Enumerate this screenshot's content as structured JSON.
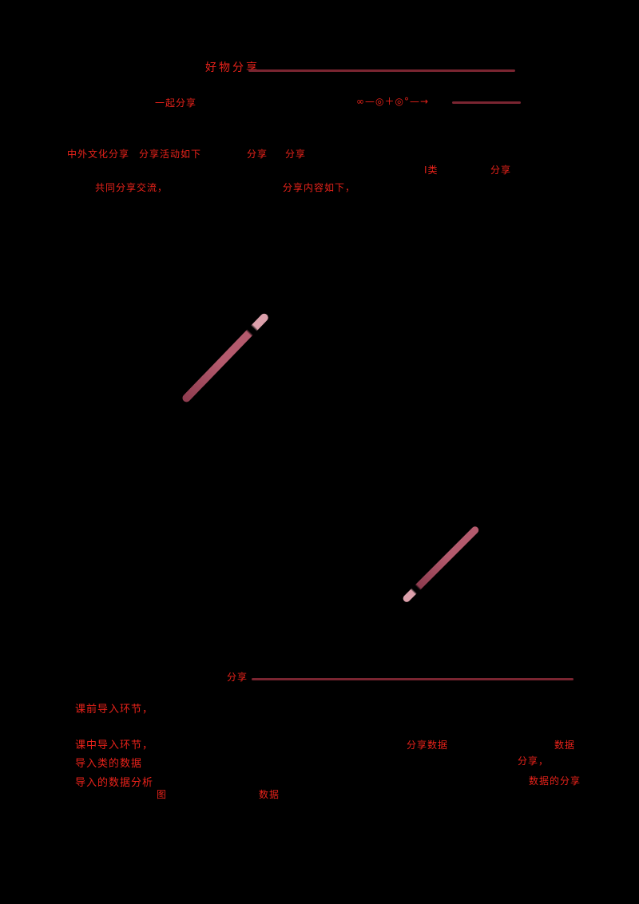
{
  "board": {
    "colors": {
      "background": "#000000",
      "ink": "#e8221a",
      "underline": "#7a2531",
      "chalk-body": "#b45a6d",
      "chalk-dark": "#8e3c4f",
      "chalk-tip": "#dca0ab"
    }
  },
  "texts": {
    "title": "好物分享",
    "subtitle": "一起分享",
    "formula": "∞—◎＋◎°—→",
    "row3_a": "中外文化分享",
    "row3_b": "分享活动如下",
    "row3_c": "分享",
    "row3_d": "分享",
    "row4_a": "Ⅰ类",
    "row4_b": "分享",
    "row5_a": "共同分享交流，",
    "row5_b": "分享内容如下，",
    "mid_label": "分享",
    "list_1": "课前导入环节，",
    "list_2": "课中导入环节，",
    "list_3": "导入类的数据",
    "list_4": "导入的数据分析",
    "right_1": "分享数据",
    "right_2": "数据",
    "right_3": "分享，",
    "right_4": "数据的分享",
    "foot_1": "图",
    "foot_2": "数据"
  }
}
